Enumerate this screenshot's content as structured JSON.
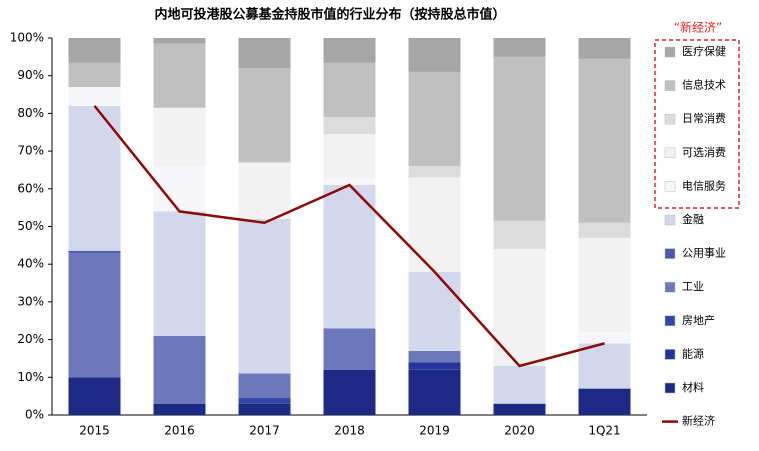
{
  "chart_data": {
    "type": "bar",
    "stacked": true,
    "title": "内地可投港股公募基金持股市值的行业分布（按持股总市值）",
    "annotation": "“新经济”",
    "categories": [
      "2015",
      "2016",
      "2017",
      "2018",
      "2019",
      "2020",
      "1Q21"
    ],
    "ylim": [
      0,
      100
    ],
    "yticks": [
      {
        "value": 0,
        "label": "0%"
      },
      {
        "value": 10,
        "label": "10%"
      },
      {
        "value": 20,
        "label": "20%"
      },
      {
        "value": 30,
        "label": "30%"
      },
      {
        "value": 40,
        "label": "40%"
      },
      {
        "value": 50,
        "label": "50%"
      },
      {
        "value": 60,
        "label": "60%"
      },
      {
        "value": 70,
        "label": "70%"
      },
      {
        "value": 80,
        "label": "80%"
      },
      {
        "value": 90,
        "label": "90%"
      },
      {
        "value": 100,
        "label": "100%"
      }
    ],
    "series": [
      {
        "name": "材料",
        "color": "#1c2a85",
        "values": [
          10,
          3,
          3,
          12,
          12,
          3,
          7
        ]
      },
      {
        "name": "能源",
        "color": "#24369c",
        "values": [
          0,
          0,
          0,
          0,
          2,
          0,
          0
        ]
      },
      {
        "name": "房地产",
        "color": "#3346a8",
        "values": [
          0,
          0,
          1.5,
          0,
          0,
          0,
          0
        ]
      },
      {
        "name": "工业",
        "color": "#6c78ba",
        "values": [
          33,
          18,
          6.5,
          11,
          3,
          0,
          0
        ]
      },
      {
        "name": "公用事业",
        "color": "#4a58ab",
        "values": [
          0.5,
          0,
          0,
          0,
          0,
          0,
          0
        ]
      },
      {
        "name": "金融",
        "color": "#d3d7ec",
        "values": [
          38.5,
          33,
          41,
          38,
          21,
          10,
          12
        ]
      },
      {
        "name": "电信服务",
        "color": "#f7f7fb",
        "values": [
          5,
          12,
          0,
          2,
          0,
          0,
          3
        ]
      },
      {
        "name": "可选消费",
        "color": "#f2f2f2",
        "values": [
          0,
          15.5,
          15,
          11.5,
          25,
          31,
          25
        ]
      },
      {
        "name": "日常消费",
        "color": "#dcdcdc",
        "values": [
          0,
          0,
          0,
          4.5,
          3,
          7.5,
          4
        ]
      },
      {
        "name": "信息技术",
        "color": "#c0c0c0",
        "values": [
          6.5,
          17,
          25,
          14.5,
          25,
          43.5,
          43.5
        ]
      },
      {
        "name": "医疗保健",
        "color": "#a6a6a6",
        "values": [
          6.5,
          1.5,
          8,
          6.5,
          9,
          5,
          5.5
        ]
      },
      {
        "name": "新经济",
        "type": "line",
        "color": "#8b0a0a",
        "values": [
          82,
          54,
          51,
          61,
          38,
          13,
          19
        ]
      }
    ]
  }
}
